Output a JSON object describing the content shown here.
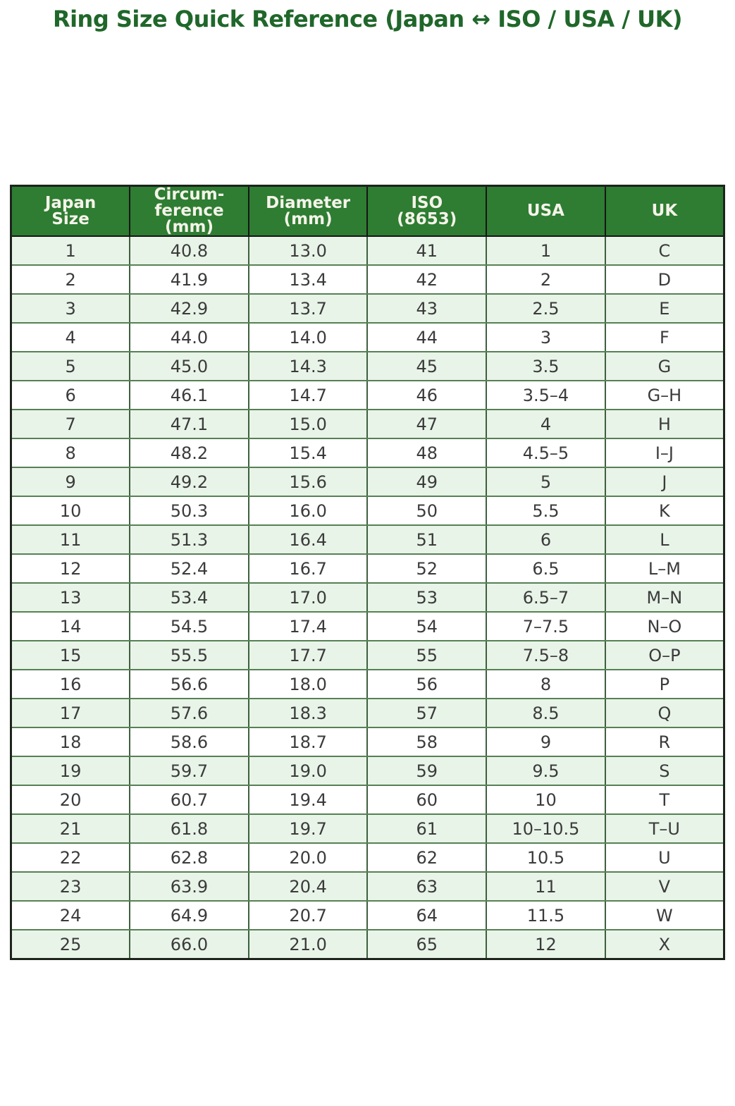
{
  "title": "Ring Size Quick Reference (Japan ↔ ISO / USA / UK)",
  "colors": {
    "title_text": "#1f672a",
    "header_bg": "#2e7d32",
    "header_text": "#f5f3ea",
    "row_alt_bg": "#e8f4e8",
    "row_bg": "#ffffff",
    "cell_text": "#3b3b3b",
    "grid_horizontal": "#578055",
    "grid_vertical": "#3e603f",
    "outer_border": "#1c241c"
  },
  "chart_data": {
    "type": "table",
    "title": "Ring Size Quick Reference (Japan ↔ ISO / USA / UK)",
    "legend_position": "none",
    "grid": true,
    "columns": [
      {
        "name": "japan-size",
        "label": "Japan\nSize"
      },
      {
        "name": "circumference-mm",
        "label": "Circum-\nference\n(mm)"
      },
      {
        "name": "diameter-mm",
        "label": "Diameter\n(mm)"
      },
      {
        "name": "iso-8653",
        "label": "ISO\n(8653)"
      },
      {
        "name": "usa",
        "label": "USA"
      },
      {
        "name": "uk",
        "label": "UK"
      }
    ],
    "rows": [
      [
        "1",
        "40.8",
        "13.0",
        "41",
        "1",
        "C"
      ],
      [
        "2",
        "41.9",
        "13.4",
        "42",
        "2",
        "D"
      ],
      [
        "3",
        "42.9",
        "13.7",
        "43",
        "2.5",
        "E"
      ],
      [
        "4",
        "44.0",
        "14.0",
        "44",
        "3",
        "F"
      ],
      [
        "5",
        "45.0",
        "14.3",
        "45",
        "3.5",
        "G"
      ],
      [
        "6",
        "46.1",
        "14.7",
        "46",
        "3.5–4",
        "G–H"
      ],
      [
        "7",
        "47.1",
        "15.0",
        "47",
        "4",
        "H"
      ],
      [
        "8",
        "48.2",
        "15.4",
        "48",
        "4.5–5",
        "I–J"
      ],
      [
        "9",
        "49.2",
        "15.6",
        "49",
        "5",
        "J"
      ],
      [
        "10",
        "50.3",
        "16.0",
        "50",
        "5.5",
        "K"
      ],
      [
        "11",
        "51.3",
        "16.4",
        "51",
        "6",
        "L"
      ],
      [
        "12",
        "52.4",
        "16.7",
        "52",
        "6.5",
        "L–M"
      ],
      [
        "13",
        "53.4",
        "17.0",
        "53",
        "6.5–7",
        "M–N"
      ],
      [
        "14",
        "54.5",
        "17.4",
        "54",
        "7–7.5",
        "N–O"
      ],
      [
        "15",
        "55.5",
        "17.7",
        "55",
        "7.5–8",
        "O–P"
      ],
      [
        "16",
        "56.6",
        "18.0",
        "56",
        "8",
        "P"
      ],
      [
        "17",
        "57.6",
        "18.3",
        "57",
        "8.5",
        "Q"
      ],
      [
        "18",
        "58.6",
        "18.7",
        "58",
        "9",
        "R"
      ],
      [
        "19",
        "59.7",
        "19.0",
        "59",
        "9.5",
        "S"
      ],
      [
        "20",
        "60.7",
        "19.4",
        "60",
        "10",
        "T"
      ],
      [
        "21",
        "61.8",
        "19.7",
        "61",
        "10–10.5",
        "T–U"
      ],
      [
        "22",
        "62.8",
        "20.0",
        "62",
        "10.5",
        "U"
      ],
      [
        "23",
        "63.9",
        "20.4",
        "63",
        "11",
        "V"
      ],
      [
        "24",
        "64.9",
        "20.7",
        "64",
        "11.5",
        "W"
      ],
      [
        "25",
        "66.0",
        "21.0",
        "65",
        "12",
        "X"
      ]
    ]
  }
}
